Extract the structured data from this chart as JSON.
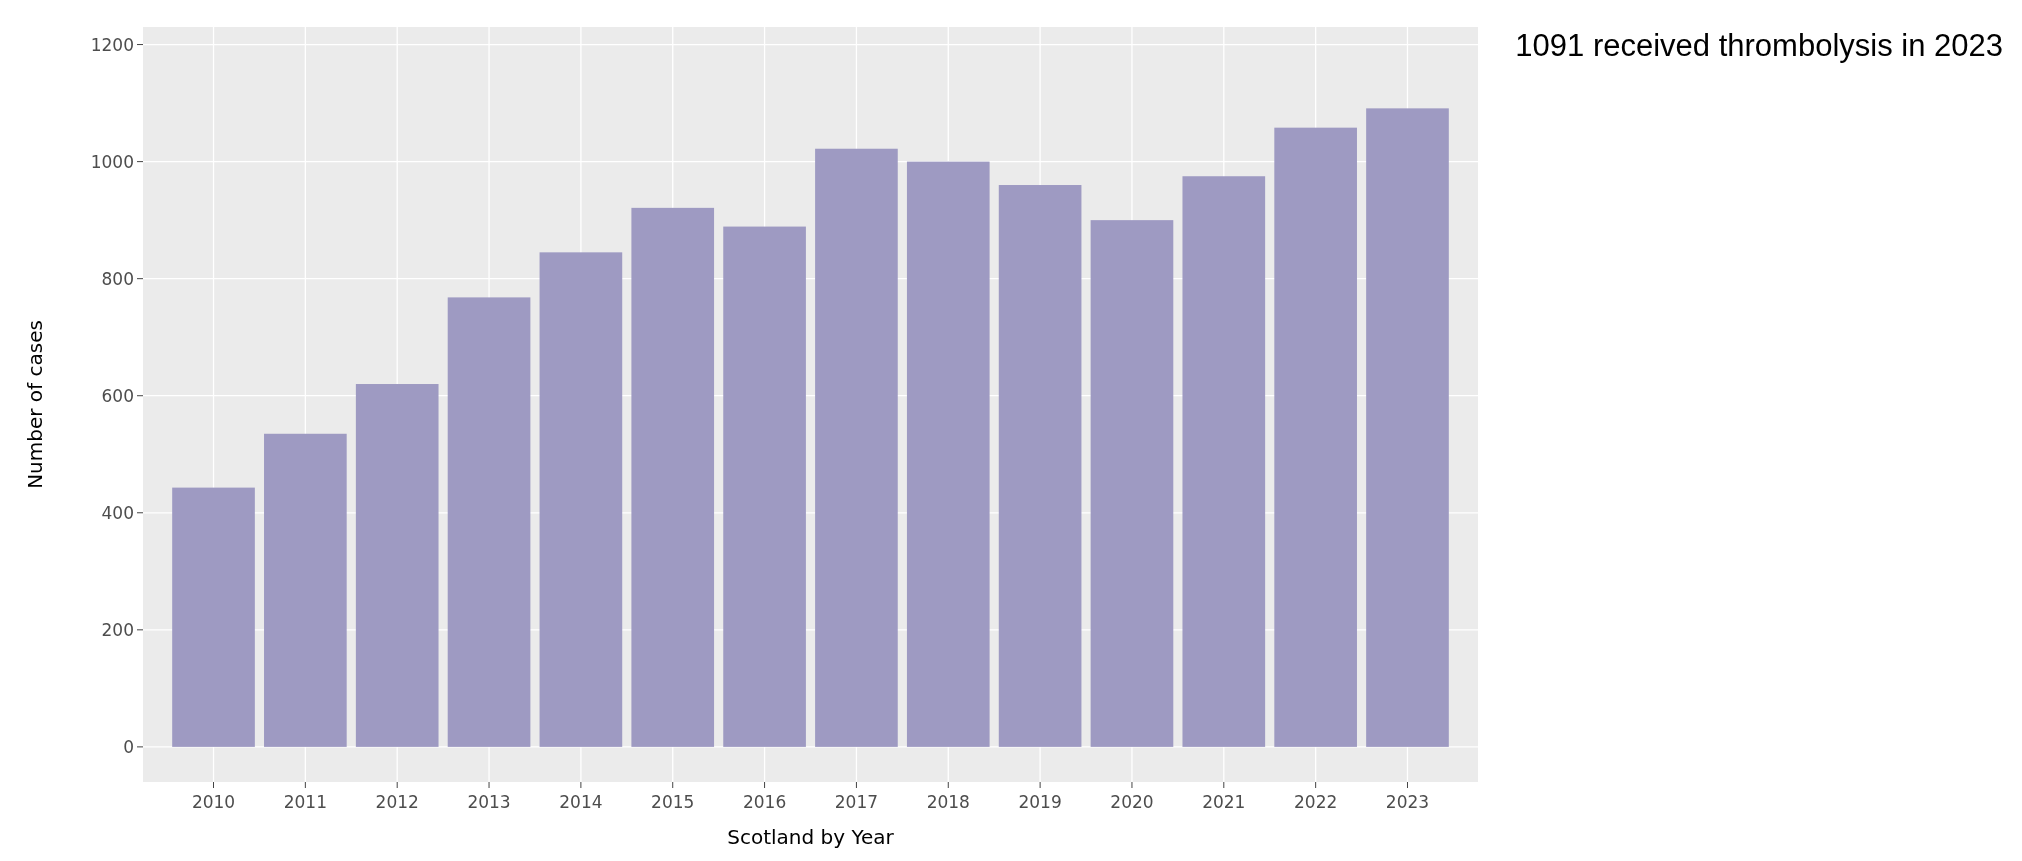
{
  "chart_data": {
    "type": "bar",
    "xlabel": "Scotland by Year",
    "ylabel": "Number of cases",
    "categories": [
      "2010",
      "2011",
      "2012",
      "2013",
      "2014",
      "2015",
      "2016",
      "2017",
      "2018",
      "2019",
      "2020",
      "2021",
      "2022",
      "2023"
    ],
    "values": [
      443,
      535,
      620,
      768,
      845,
      921,
      889,
      1022,
      1000,
      960,
      900,
      975,
      1058,
      1091
    ],
    "color": "#9e9ac2",
    "ylim": [
      -60,
      1230
    ],
    "yticks": [
      0,
      200,
      400,
      600,
      800,
      1000,
      1200
    ],
    "grid": true,
    "annotations": [
      "1091 received thrombolysis in 2023"
    ]
  }
}
